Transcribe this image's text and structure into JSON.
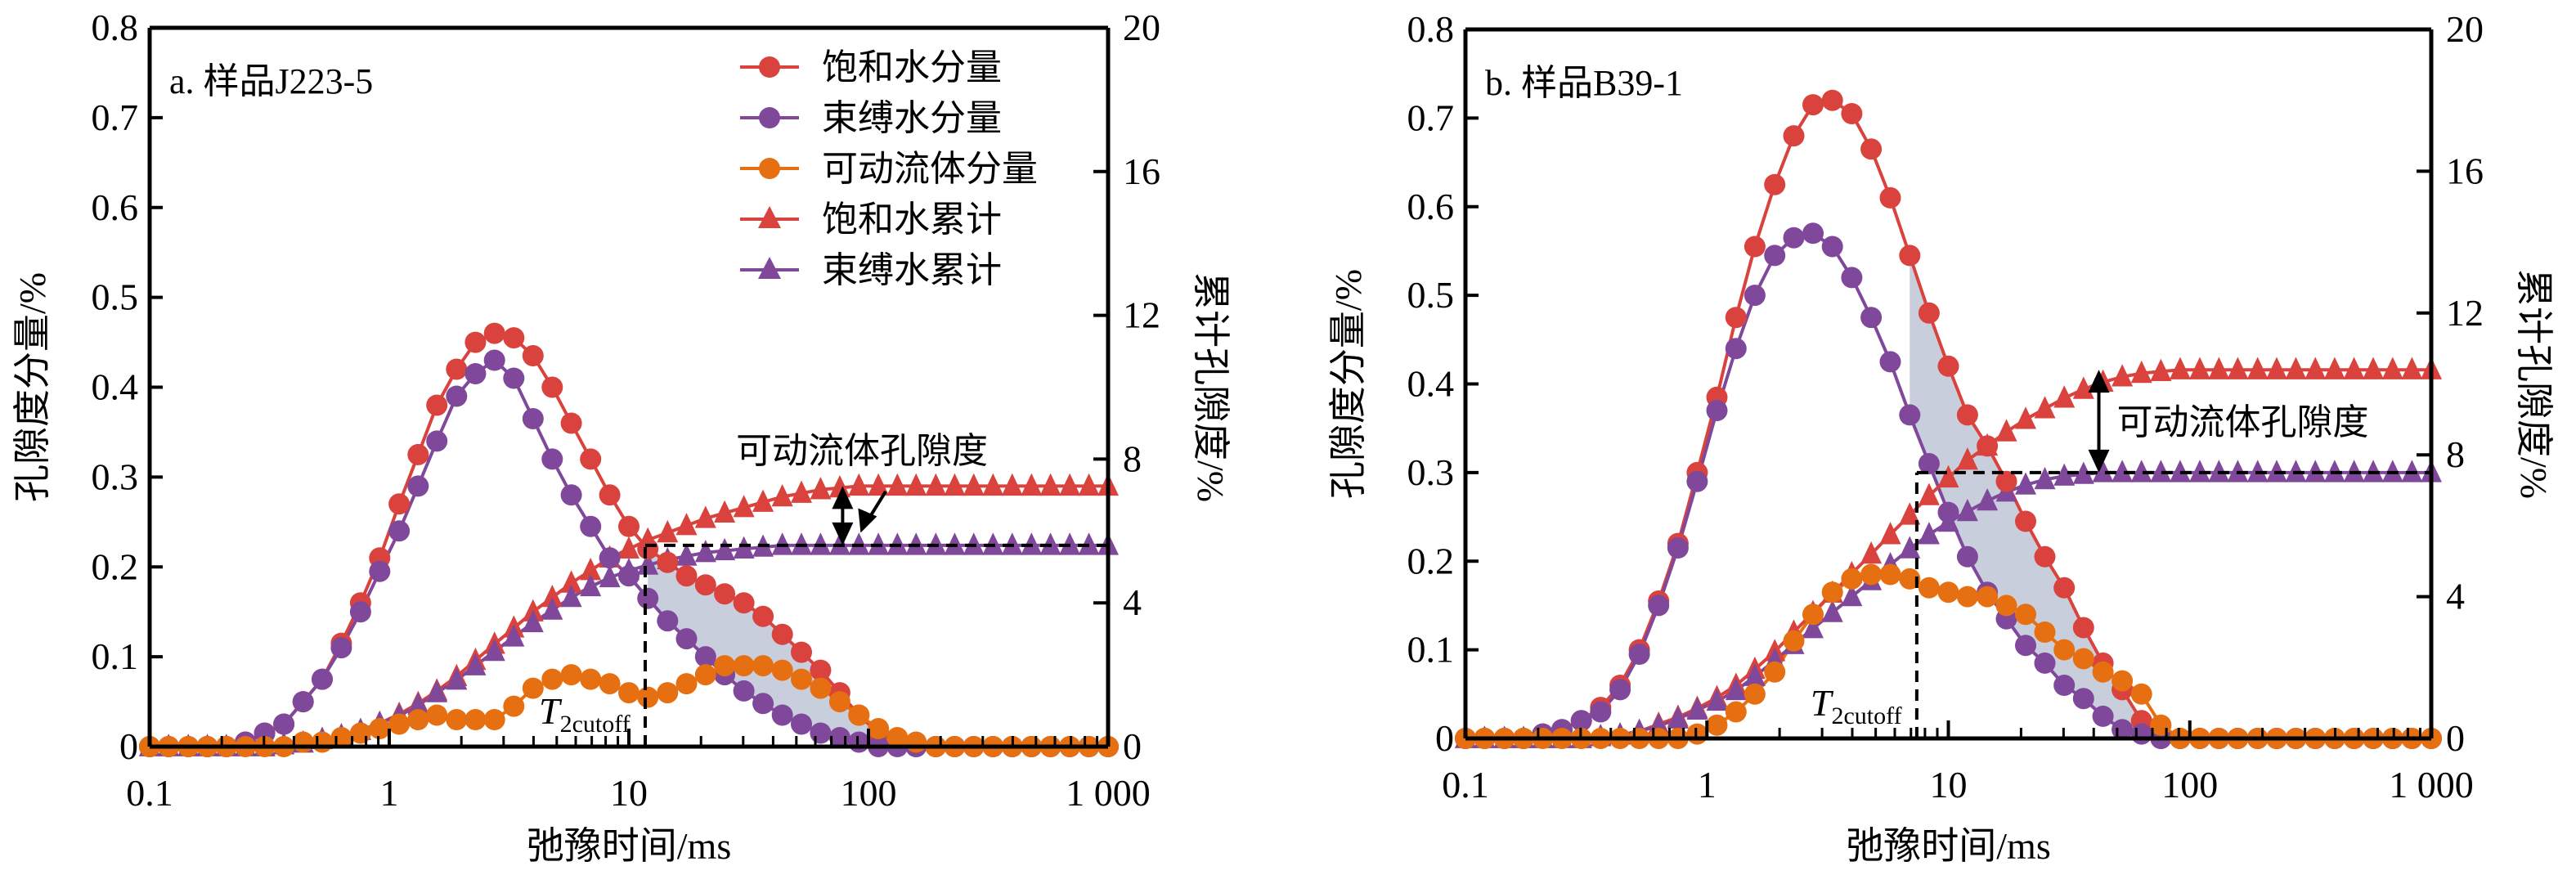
{
  "colors": {
    "saturated": "#D9423D",
    "bound": "#80489A",
    "movable": "#E66F12",
    "shade": "#C9CEDD",
    "axis": "#000000"
  },
  "legend": {
    "items": [
      {
        "label": "饱和水分量",
        "series": "saturated_fraction",
        "marker": "circle"
      },
      {
        "label": "束缚水分量",
        "series": "bound_fraction",
        "marker": "circle"
      },
      {
        "label": "可动流体分量",
        "series": "movable_fraction",
        "marker": "circle"
      },
      {
        "label": "饱和水累计",
        "series": "saturated_cumulative",
        "marker": "triangle"
      },
      {
        "label": "束缚水累计",
        "series": "bound_cumulative",
        "marker": "triangle"
      }
    ],
    "position": "top-right of panel a"
  },
  "chart_data": [
    {
      "type": "line",
      "title": "a. 样品J223-5",
      "xlabel": "弛豫时间/ms",
      "ylabel": "孔隙度分量/%",
      "y2label": "累计孔隙度/%",
      "xscale": "log",
      "xlim": [
        0.1,
        1000
      ],
      "ylim": [
        0,
        0.8
      ],
      "y2lim": [
        0,
        20
      ],
      "xticks": [
        0.1,
        1,
        10,
        100,
        1000
      ],
      "xtick_labels": [
        "0.1",
        "1",
        "10",
        "100",
        "1 000"
      ],
      "yticks": [
        0,
        0.1,
        0.2,
        0.3,
        0.4,
        0.5,
        0.6,
        0.7,
        0.8
      ],
      "ytick_labels": [
        "0",
        "0.1",
        "0.2",
        "0.3",
        "0.4",
        "0.5",
        "0.6",
        "0.7",
        "0.8"
      ],
      "y2ticks": [
        0,
        4,
        8,
        12,
        16,
        20
      ],
      "y2tick_labels": [
        "0",
        "4",
        "8",
        "12",
        "16",
        "20"
      ],
      "grid": false,
      "legend": "top-right",
      "t2cutoff_ms": 11.7,
      "t2cutoff_label": "T",
      "t2cutoff_sub": "2cutoff",
      "annotation": "可动流体孔隙度",
      "x": [
        0.1,
        0.12,
        0.145,
        0.174,
        0.209,
        0.251,
        0.302,
        0.363,
        0.437,
        0.525,
        0.631,
        0.759,
        0.912,
        1.1,
        1.32,
        1.58,
        1.91,
        2.29,
        2.75,
        3.31,
        3.98,
        4.79,
        5.75,
        6.92,
        8.32,
        10,
        12.0,
        14.5,
        17.4,
        20.9,
        25.1,
        30.2,
        36.3,
        43.7,
        52.5,
        63.1,
        75.9,
        91.2,
        110,
        132,
        158,
        191,
        229,
        275,
        331,
        398,
        479,
        575,
        692,
        832,
        1000
      ],
      "series": [
        {
          "name": "饱和水分量",
          "key": "saturated_fraction",
          "axis": "left",
          "marker": "circle",
          "values": [
            0,
            0,
            0,
            0,
            0,
            0.005,
            0.015,
            0.025,
            0.05,
            0.075,
            0.115,
            0.16,
            0.21,
            0.27,
            0.325,
            0.38,
            0.42,
            0.45,
            0.46,
            0.455,
            0.435,
            0.4,
            0.36,
            0.32,
            0.28,
            0.245,
            0.22,
            0.205,
            0.19,
            0.18,
            0.17,
            0.16,
            0.145,
            0.125,
            0.105,
            0.085,
            0.06,
            0.035,
            0.015,
            0.005,
            0,
            0,
            0,
            0,
            0,
            0,
            0,
            0,
            0,
            0,
            0
          ]
        },
        {
          "name": "束缚水分量",
          "key": "bound_fraction",
          "axis": "left",
          "marker": "circle",
          "values": [
            0,
            0,
            0,
            0,
            0,
            0.005,
            0.015,
            0.025,
            0.05,
            0.075,
            0.11,
            0.15,
            0.195,
            0.24,
            0.29,
            0.34,
            0.39,
            0.415,
            0.43,
            0.41,
            0.365,
            0.32,
            0.28,
            0.245,
            0.21,
            0.19,
            0.165,
            0.14,
            0.12,
            0.1,
            0.08,
            0.062,
            0.048,
            0.035,
            0.025,
            0.015,
            0.01,
            0.005,
            0,
            0,
            0,
            0,
            0,
            0,
            0,
            0,
            0,
            0,
            0,
            0,
            0
          ]
        },
        {
          "name": "可动流体分量",
          "key": "movable_fraction",
          "axis": "left",
          "marker": "circle",
          "values": [
            0,
            0,
            0,
            0,
            0,
            0,
            0,
            0,
            0.005,
            0.005,
            0.01,
            0.015,
            0.02,
            0.025,
            0.03,
            0.035,
            0.03,
            0.03,
            0.03,
            0.045,
            0.065,
            0.075,
            0.08,
            0.075,
            0.07,
            0.06,
            0.055,
            0.06,
            0.07,
            0.08,
            0.09,
            0.09,
            0.09,
            0.085,
            0.075,
            0.065,
            0.05,
            0.035,
            0.02,
            0.01,
            0.005,
            0,
            0,
            0,
            0,
            0,
            0,
            0,
            0,
            0,
            0
          ]
        },
        {
          "name": "饱和水累计",
          "key": "saturated_cumulative",
          "axis": "right",
          "marker": "triangle",
          "values": [
            0,
            0,
            0,
            0,
            0,
            0,
            0,
            0.05,
            0.1,
            0.2,
            0.3,
            0.45,
            0.65,
            0.9,
            1.2,
            1.55,
            1.95,
            2.4,
            2.85,
            3.3,
            3.75,
            4.15,
            4.55,
            4.9,
            5.25,
            5.5,
            5.75,
            5.95,
            6.15,
            6.35,
            6.5,
            6.65,
            6.8,
            6.95,
            7.05,
            7.15,
            7.2,
            7.25,
            7.25,
            7.25,
            7.25,
            7.25,
            7.25,
            7.25,
            7.25,
            7.25,
            7.25,
            7.25,
            7.25,
            7.25,
            7.25
          ]
        },
        {
          "name": "束缚水累计",
          "key": "bound_cumulative",
          "axis": "right",
          "marker": "triangle",
          "values": [
            0,
            0,
            0,
            0,
            0,
            0,
            0,
            0.05,
            0.1,
            0.2,
            0.3,
            0.45,
            0.65,
            0.85,
            1.15,
            1.5,
            1.85,
            2.25,
            2.65,
            3.05,
            3.45,
            3.8,
            4.15,
            4.45,
            4.7,
            4.9,
            5.05,
            5.2,
            5.3,
            5.4,
            5.45,
            5.5,
            5.55,
            5.6,
            5.6,
            5.6,
            5.6,
            5.6,
            5.6,
            5.6,
            5.6,
            5.6,
            5.6,
            5.6,
            5.6,
            5.6,
            5.6,
            5.6,
            5.6,
            5.6,
            5.6
          ]
        }
      ]
    },
    {
      "type": "line",
      "title": "b. 样品B39-1",
      "xlabel": "弛豫时间/ms",
      "ylabel": "孔隙度分量/%",
      "y2label": "累计孔隙度/%",
      "xscale": "log",
      "xlim": [
        0.1,
        1000
      ],
      "ylim": [
        0,
        0.8
      ],
      "y2lim": [
        0,
        20
      ],
      "xticks": [
        0.1,
        1,
        10,
        100,
        1000
      ],
      "xtick_labels": [
        "0.1",
        "1",
        "10",
        "100",
        "1 000"
      ],
      "yticks": [
        0,
        0.1,
        0.2,
        0.3,
        0.4,
        0.5,
        0.6,
        0.7,
        0.8
      ],
      "ytick_labels": [
        "0",
        "0.1",
        "0.2",
        "0.3",
        "0.4",
        "0.5",
        "0.6",
        "0.7",
        "0.8"
      ],
      "y2ticks": [
        0,
        4,
        8,
        12,
        16,
        20
      ],
      "y2tick_labels": [
        "0",
        "4",
        "8",
        "12",
        "16",
        "20"
      ],
      "grid": false,
      "legend": "none",
      "t2cutoff_ms": 7.4,
      "t2cutoff_label": "T",
      "t2cutoff_sub": "2cutoff",
      "annotation": "可动流体孔隙度",
      "x": [
        0.1,
        0.12,
        0.145,
        0.174,
        0.209,
        0.251,
        0.302,
        0.363,
        0.437,
        0.525,
        0.631,
        0.759,
        0.912,
        1.1,
        1.32,
        1.58,
        1.91,
        2.29,
        2.75,
        3.31,
        3.98,
        4.79,
        5.75,
        6.92,
        8.32,
        10,
        12.0,
        14.5,
        17.4,
        20.9,
        25.1,
        30.2,
        36.3,
        43.7,
        52.5,
        63.1,
        75.9,
        91.2,
        110,
        132,
        158,
        191,
        229,
        275,
        331,
        398,
        479,
        575,
        692,
        832,
        1000
      ],
      "series": [
        {
          "name": "饱和水分量",
          "key": "saturated_fraction",
          "axis": "left",
          "marker": "circle",
          "values": [
            0,
            0,
            0,
            0,
            0.005,
            0.01,
            0.02,
            0.035,
            0.06,
            0.1,
            0.155,
            0.22,
            0.3,
            0.385,
            0.475,
            0.555,
            0.625,
            0.68,
            0.715,
            0.72,
            0.705,
            0.665,
            0.61,
            0.545,
            0.48,
            0.42,
            0.365,
            0.33,
            0.29,
            0.245,
            0.205,
            0.17,
            0.125,
            0.085,
            0.055,
            0.02,
            0,
            0,
            0,
            0,
            0,
            0,
            0,
            0,
            0,
            0,
            0,
            0,
            0,
            0,
            0
          ]
        },
        {
          "name": "束缚水分量",
          "key": "bound_fraction",
          "axis": "left",
          "marker": "circle",
          "values": [
            0,
            0,
            0,
            0,
            0.005,
            0.01,
            0.02,
            0.03,
            0.055,
            0.095,
            0.15,
            0.215,
            0.29,
            0.37,
            0.44,
            0.5,
            0.545,
            0.565,
            0.57,
            0.555,
            0.52,
            0.475,
            0.425,
            0.365,
            0.31,
            0.255,
            0.205,
            0.165,
            0.135,
            0.105,
            0.085,
            0.06,
            0.045,
            0.025,
            0.01,
            0.005,
            0,
            0,
            0,
            0,
            0,
            0,
            0,
            0,
            0,
            0,
            0,
            0,
            0,
            0,
            0
          ]
        },
        {
          "name": "可动流体分量",
          "key": "movable_fraction",
          "axis": "left",
          "marker": "circle",
          "values": [
            0,
            0,
            0,
            0,
            0,
            0,
            0,
            0,
            0,
            0,
            0,
            0,
            0.005,
            0.015,
            0.03,
            0.05,
            0.075,
            0.11,
            0.14,
            0.165,
            0.18,
            0.185,
            0.185,
            0.18,
            0.17,
            0.165,
            0.16,
            0.16,
            0.15,
            0.14,
            0.12,
            0.1,
            0.09,
            0.075,
            0.065,
            0.05,
            0.015,
            0,
            0,
            0,
            0,
            0,
            0,
            0,
            0,
            0,
            0,
            0,
            0,
            0,
            0
          ]
        },
        {
          "name": "饱和水累计",
          "key": "saturated_cumulative",
          "axis": "right",
          "marker": "triangle",
          "values": [
            0,
            0,
            0,
            0,
            0,
            0,
            0,
            0.05,
            0.1,
            0.2,
            0.4,
            0.6,
            0.85,
            1.15,
            1.5,
            1.95,
            2.45,
            3.0,
            3.55,
            4.1,
            4.65,
            5.2,
            5.75,
            6.3,
            6.85,
            7.35,
            7.85,
            8.25,
            8.65,
            9.0,
            9.3,
            9.6,
            9.85,
            10.05,
            10.2,
            10.3,
            10.35,
            10.4,
            10.4,
            10.4,
            10.4,
            10.4,
            10.4,
            10.4,
            10.4,
            10.4,
            10.4,
            10.4,
            10.4,
            10.4,
            10.4
          ]
        },
        {
          "name": "束缚水累计",
          "key": "bound_cumulative",
          "axis": "right",
          "marker": "triangle",
          "values": [
            0,
            0,
            0,
            0,
            0,
            0,
            0,
            0.05,
            0.1,
            0.2,
            0.35,
            0.55,
            0.8,
            1.05,
            1.35,
            1.75,
            2.2,
            2.65,
            3.1,
            3.55,
            4.0,
            4.45,
            4.9,
            5.35,
            5.75,
            6.1,
            6.4,
            6.7,
            6.95,
            7.15,
            7.3,
            7.4,
            7.45,
            7.5,
            7.5,
            7.5,
            7.5,
            7.5,
            7.5,
            7.5,
            7.5,
            7.5,
            7.5,
            7.5,
            7.5,
            7.5,
            7.5,
            7.5,
            7.5,
            7.5,
            7.5
          ]
        }
      ]
    }
  ]
}
